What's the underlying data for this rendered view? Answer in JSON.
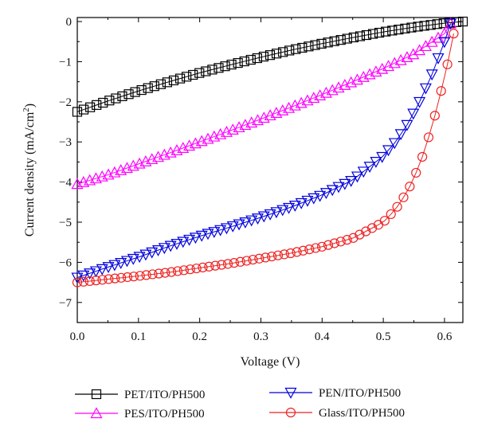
{
  "chart_data": {
    "type": "line",
    "xlabel": "Voltage (V)",
    "ylabel_main": "Current density (mA/cm",
    "ylabel_sup": "2",
    "ylabel_close": ")",
    "xlim": [
      0.0,
      0.63
    ],
    "ylim": [
      -7.5,
      0.1
    ],
    "xticks": [
      0.0,
      0.1,
      0.2,
      0.3,
      0.4,
      0.5,
      0.6
    ],
    "xtick_labels": [
      "0.0",
      "0.1",
      "0.2",
      "0.3",
      "0.4",
      "0.5",
      "0.6"
    ],
    "yticks": [
      0,
      -1,
      -2,
      -3,
      -4,
      -5,
      -6,
      -7
    ],
    "ytick_labels": [
      "0",
      "−1",
      "−2",
      "−3",
      "−4",
      "−5",
      "−6",
      "−7"
    ],
    "grid": false,
    "legend_placement": "bottom",
    "series": [
      {
        "name": "PET/ITO/PH500",
        "marker": "square",
        "color": "#000000",
        "x": [
          0.0,
          0.05,
          0.1,
          0.15,
          0.2,
          0.25,
          0.3,
          0.35,
          0.4,
          0.45,
          0.5,
          0.55,
          0.6,
          0.63
        ],
        "y": [
          -2.25,
          -1.98,
          -1.73,
          -1.5,
          -1.28,
          -1.08,
          -0.89,
          -0.71,
          -0.55,
          -0.4,
          -0.26,
          -0.14,
          -0.04,
          0.0
        ]
      },
      {
        "name": "PES/ITO/PH500",
        "marker": "triangle-up",
        "color": "#ff00ff",
        "x": [
          0.0,
          0.05,
          0.1,
          0.15,
          0.2,
          0.25,
          0.3,
          0.35,
          0.4,
          0.45,
          0.5,
          0.55,
          0.6,
          0.61
        ],
        "y": [
          -4.05,
          -3.82,
          -3.55,
          -3.28,
          -3.0,
          -2.72,
          -2.43,
          -2.13,
          -1.82,
          -1.5,
          -1.17,
          -0.81,
          -0.3,
          -0.05
        ]
      },
      {
        "name": "PEN/ITO/PH500",
        "marker": "triangle-down",
        "color": "#0000dd",
        "x": [
          0.0,
          0.05,
          0.1,
          0.15,
          0.2,
          0.25,
          0.3,
          0.35,
          0.4,
          0.45,
          0.5,
          0.52,
          0.54,
          0.56,
          0.58,
          0.6,
          0.61
        ],
        "y": [
          -6.38,
          -6.12,
          -5.87,
          -5.6,
          -5.35,
          -5.12,
          -4.88,
          -4.62,
          -4.32,
          -3.95,
          -3.35,
          -3.0,
          -2.55,
          -1.98,
          -1.3,
          -0.5,
          -0.05
        ]
      },
      {
        "name": "Glass/ITO/PH500",
        "marker": "circle",
        "color": "#ee2222",
        "x": [
          0.0,
          0.05,
          0.1,
          0.15,
          0.2,
          0.25,
          0.3,
          0.35,
          0.4,
          0.45,
          0.5,
          0.52,
          0.54,
          0.56,
          0.58,
          0.59,
          0.6,
          0.61,
          0.615
        ],
        "y": [
          -6.5,
          -6.42,
          -6.34,
          -6.25,
          -6.14,
          -6.03,
          -5.9,
          -5.77,
          -5.61,
          -5.4,
          -5.0,
          -4.68,
          -4.22,
          -3.55,
          -2.6,
          -2.0,
          -1.4,
          -0.7,
          -0.3
        ]
      }
    ]
  }
}
